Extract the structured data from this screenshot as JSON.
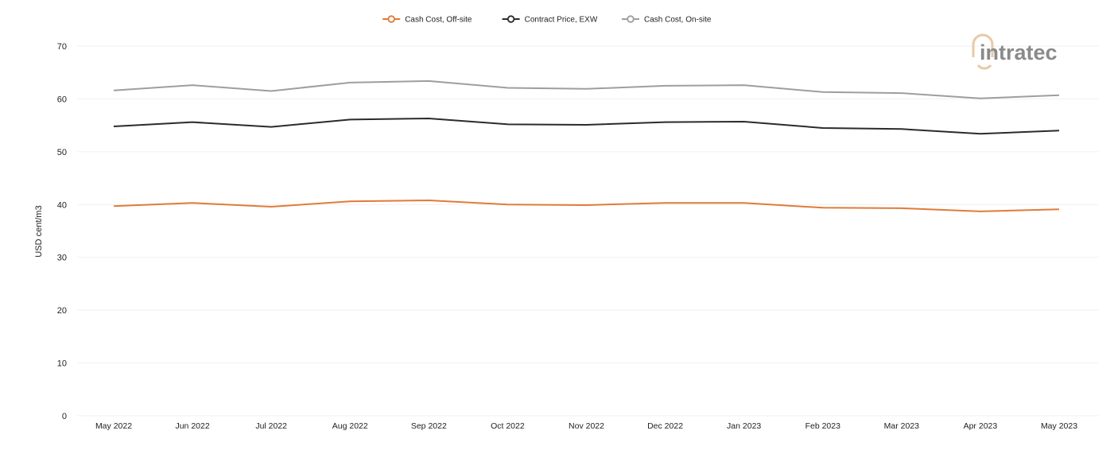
{
  "chart_data": {
    "type": "line",
    "title": "",
    "xlabel": "",
    "ylabel": "USD cent/m3",
    "ylim": [
      0,
      70
    ],
    "yticks": [
      0,
      10,
      20,
      30,
      40,
      50,
      60,
      70
    ],
    "grid": true,
    "legend_position": "top-center",
    "categories": [
      "May 2022",
      "Jun 2022",
      "Jul 2022",
      "Aug 2022",
      "Sep 2022",
      "Oct 2022",
      "Nov 2022",
      "Dec 2022",
      "Jan 2023",
      "Feb 2023",
      "Mar 2023",
      "Apr 2023",
      "May 2023"
    ],
    "series": [
      {
        "name": "Cash Cost, Off-site",
        "color": "#e07b39",
        "values": [
          39.7,
          40.3,
          39.6,
          40.6,
          40.8,
          40.0,
          39.9,
          40.3,
          40.3,
          39.4,
          39.3,
          38.7,
          39.1
        ]
      },
      {
        "name": "Contract Price, EXW",
        "color": "#2b2b2b",
        "values": [
          54.8,
          55.6,
          54.7,
          56.1,
          56.3,
          55.2,
          55.1,
          55.6,
          55.7,
          54.5,
          54.3,
          53.4,
          54.0
        ]
      },
      {
        "name": "Cash Cost, On-site",
        "color": "#9e9e9e",
        "values": [
          61.6,
          62.6,
          61.5,
          63.1,
          63.4,
          62.1,
          61.9,
          62.5,
          62.6,
          61.3,
          61.1,
          60.1,
          60.7
        ]
      }
    ]
  },
  "watermark": {
    "text": "intratec",
    "color": "#8a8a8a",
    "accent": "#e8c9a8"
  },
  "colors": {
    "grid": "#f0f0f0",
    "tick_text": "#222222"
  }
}
